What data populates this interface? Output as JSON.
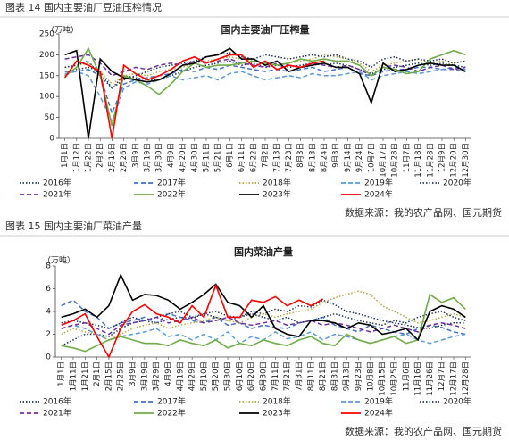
{
  "figures": [
    {
      "caption": "图表 14 国内主要油厂豆油压榨情况",
      "source": "数据来源：我的农产品网、国元期货"
    },
    {
      "caption": "图表 15 国内主要油厂菜油产量",
      "source": "数据来源：我的农产品网、国元期货"
    }
  ],
  "chart_data": [
    {
      "type": "line",
      "title": "国内主要油厂压榨量",
      "y_label": "（万吨）",
      "categories": [
        "1月1日",
        "1月12日",
        "1月22日",
        "2月2日",
        "2月16日",
        "2月26日",
        "3月9日",
        "3月19日",
        "3月30日",
        "4月9日",
        "4月20日",
        "4月30日",
        "5月11日",
        "5月21日",
        "6月1日",
        "6月11日",
        "6月22日",
        "7月2日",
        "7月13日",
        "7月23日",
        "8月3日",
        "8月13日",
        "8月24日",
        "9月3日",
        "9月14日",
        "9月24日",
        "10月7日",
        "10月17日",
        "10月28日",
        "11月7日",
        "11月18日",
        "11月28日",
        "12月9日",
        "12月20日",
        "12月30日"
      ],
      "ylim": [
        0,
        250
      ],
      "yticks": [
        0,
        50,
        100,
        150,
        200,
        250
      ],
      "grid": false,
      "series": [
        {
          "name": "2016年",
          "color": "#1f3864",
          "dash": "dotted",
          "values": [
            150,
            165,
            170,
            160,
            120,
            150,
            145,
            140,
            140,
            150,
            160,
            170,
            175,
            180,
            185,
            175,
            180,
            170,
            175,
            170,
            175,
            180,
            175,
            180,
            175,
            165,
            155,
            165,
            170,
            175,
            180,
            175,
            180,
            175,
            170
          ]
        },
        {
          "name": "2017年",
          "color": "#4472c4",
          "dash": "dashed",
          "values": [
            160,
            160,
            165,
            150,
            60,
            130,
            140,
            145,
            150,
            155,
            165,
            160,
            170,
            165,
            175,
            170,
            165,
            160,
            165,
            160,
            165,
            170,
            160,
            165,
            170,
            155,
            150,
            160,
            165,
            165,
            170,
            170,
            165,
            165,
            160
          ]
        },
        {
          "name": "2018年",
          "color": "#b5a642",
          "dash": "dotted",
          "values": [
            170,
            175,
            180,
            160,
            130,
            150,
            155,
            150,
            160,
            165,
            170,
            180,
            185,
            190,
            195,
            190,
            185,
            180,
            175,
            180,
            185,
            190,
            200,
            195,
            190,
            180,
            160,
            175,
            180,
            185,
            190,
            180,
            185,
            180,
            185
          ]
        },
        {
          "name": "2019年",
          "color": "#5b9bd5",
          "dash": "dashed",
          "values": [
            155,
            160,
            150,
            100,
            40,
            120,
            135,
            130,
            140,
            150,
            140,
            145,
            150,
            140,
            155,
            160,
            150,
            140,
            145,
            150,
            145,
            155,
            150,
            150,
            155,
            160,
            140,
            150,
            155,
            160,
            155,
            160,
            165,
            170,
            165
          ]
        },
        {
          "name": "2020年",
          "color": "#203864",
          "dash": "dotted",
          "values": [
            170,
            175,
            185,
            150,
            120,
            140,
            150,
            160,
            170,
            175,
            180,
            185,
            195,
            200,
            205,
            195,
            190,
            200,
            195,
            190,
            195,
            200,
            195,
            200,
            190,
            185,
            170,
            190,
            195,
            185,
            190,
            185,
            190,
            180,
            185
          ]
        },
        {
          "name": "2021年",
          "color": "#7030a0",
          "dash": "dashed",
          "values": [
            190,
            195,
            200,
            180,
            150,
            160,
            170,
            165,
            175,
            180,
            175,
            185,
            180,
            185,
            190,
            180,
            175,
            170,
            180,
            175,
            170,
            180,
            175,
            170,
            175,
            165,
            150,
            170,
            175,
            170,
            160,
            170,
            175,
            165,
            170
          ]
        },
        {
          "name": "2022年",
          "color": "#70ad47",
          "dash": "solid",
          "values": [
            150,
            170,
            215,
            150,
            30,
            150,
            140,
            125,
            105,
            130,
            160,
            180,
            170,
            175,
            175,
            180,
            185,
            180,
            175,
            180,
            190,
            185,
            190,
            185,
            185,
            175,
            150,
            170,
            165,
            155,
            160,
            190,
            200,
            210,
            200
          ]
        },
        {
          "name": "2023年",
          "color": "#000000",
          "dash": "solid",
          "values": [
            200,
            210,
            0,
            190,
            160,
            145,
            140,
            135,
            140,
            155,
            175,
            180,
            195,
            200,
            215,
            190,
            190,
            175,
            185,
            160,
            170,
            175,
            180,
            170,
            170,
            155,
            85,
            180,
            160,
            165,
            175,
            180,
            175,
            175,
            160
          ]
        },
        {
          "name": "2024年",
          "color": "#ff0000",
          "dash": "solid",
          "values": [
            145,
            185,
            175,
            160,
            0,
            175,
            155,
            140,
            150,
            165,
            185,
            195,
            180,
            190,
            200,
            200,
            170,
            185,
            165,
            175,
            170,
            180,
            185,
            null,
            null,
            null,
            null,
            null,
            null,
            null,
            null,
            null,
            null,
            null,
            null
          ]
        }
      ]
    },
    {
      "type": "line",
      "title": "国内菜油产量",
      "y_label": "（万吨）",
      "categories": [
        "1月1日",
        "1月11日",
        "1月21日",
        "2月1日",
        "2月15日",
        "2月25日",
        "3月9日",
        "3月19日",
        "3月29日",
        "4月9日",
        "4月19日",
        "4月29日",
        "5月10日",
        "5月20日",
        "5月30日",
        "6月10日",
        "6月20日",
        "6月30日",
        "7月11日",
        "7月21日",
        "7月31日",
        "8月11日",
        "8月21日",
        "8月31日",
        "9月13日",
        "9月23日",
        "10月8日",
        "10月15日",
        "10月25日",
        "11月6日",
        "11月16日",
        "11月26日",
        "12月7日",
        "12月17日",
        "12月28日"
      ],
      "ylim": [
        0,
        8
      ],
      "yticks": [
        0,
        2,
        4,
        6,
        8
      ],
      "grid": false,
      "series": [
        {
          "name": "2016年",
          "color": "#1f3864",
          "dash": "dotted",
          "values": [
            1,
            1.5,
            2,
            2,
            1.8,
            2.5,
            3,
            3.2,
            3,
            3.3,
            3.5,
            3.4,
            3.8,
            4,
            3.6,
            3.5,
            4,
            3.8,
            4.2,
            4,
            4.5,
            4.4,
            5,
            4.6,
            4,
            3.8,
            3.5,
            3.2,
            3,
            2.8,
            2.6,
            2.5,
            2.8,
            3,
            3
          ]
        },
        {
          "name": "2017年",
          "color": "#4472c4",
          "dash": "dashed",
          "values": [
            4.5,
            5,
            4,
            3.5,
            2.5,
            3,
            3.2,
            3.5,
            3,
            3.8,
            3.5,
            3.2,
            3,
            3.5,
            2.8,
            3,
            2.5,
            2.8,
            2.6,
            2.5,
            3,
            3.2,
            3.5,
            2.8,
            2.5,
            2.2,
            2.8,
            2.5,
            2.2,
            2,
            2.5,
            2.8,
            2.6,
            2.2,
            2
          ]
        },
        {
          "name": "2018年",
          "color": "#b5a642",
          "dash": "dotted",
          "values": [
            2,
            2.5,
            2.2,
            2,
            1.5,
            2,
            2.5,
            2.8,
            3,
            2.5,
            2.8,
            3,
            3.2,
            3.5,
            3.2,
            3,
            3.5,
            3.8,
            3.5,
            3.8,
            4,
            4.2,
            4.8,
            5.2,
            5.5,
            5.8,
            5.5,
            4.5,
            4,
            3.5,
            3,
            3.2,
            3.5,
            3.8,
            3.5
          ]
        },
        {
          "name": "2019年",
          "color": "#5b9bd5",
          "dash": "dashed",
          "values": [
            2.5,
            2.8,
            2.5,
            2,
            1.5,
            1.8,
            2,
            2.2,
            2.5,
            1.8,
            2,
            1.5,
            2,
            1.5,
            2.2,
            1.2,
            1.8,
            1.5,
            2.2,
            1.6,
            1.8,
            2.2,
            1.5,
            2,
            1.8,
            1.5,
            1.2,
            1.5,
            1.8,
            2,
            1.5,
            1.2,
            1.5,
            1.8,
            2
          ]
        },
        {
          "name": "2020年",
          "color": "#203864",
          "dash": "dotted",
          "values": [
            3,
            3.2,
            3,
            2.8,
            2.5,
            3,
            3.5,
            3.2,
            3.5,
            3.8,
            4,
            3.5,
            3.8,
            3.5,
            3.2,
            3.5,
            3.8,
            3.5,
            3.2,
            3.5,
            3,
            3.2,
            3.5,
            3.8,
            3.5,
            3.2,
            3,
            2.8,
            3.2,
            3,
            3.5,
            3.8,
            4,
            3.5,
            3.2
          ]
        },
        {
          "name": "2021年",
          "color": "#7030a0",
          "dash": "dashed",
          "values": [
            2.5,
            2.8,
            3,
            2.5,
            2,
            2.8,
            3,
            3.2,
            3.5,
            3,
            3.2,
            3.5,
            3,
            3.2,
            3.5,
            3,
            2.8,
            3,
            3.2,
            2.8,
            3,
            3.2,
            2.8,
            3,
            2.8,
            2.5,
            2.2,
            2.5,
            2.8,
            2.5,
            2.2,
            2.8,
            3,
            2.8,
            2.5
          ]
        },
        {
          "name": "2022年",
          "color": "#70ad47",
          "dash": "solid",
          "values": [
            1,
            0.8,
            0.5,
            1,
            1.5,
            1.8,
            1.5,
            1.2,
            1.2,
            1,
            1.5,
            1.2,
            1,
            1.5,
            0.8,
            1.2,
            1,
            1.5,
            1.2,
            1,
            1.5,
            1.8,
            1.2,
            1,
            2,
            1.5,
            1.2,
            1.5,
            1.8,
            1.2,
            1.5,
            5.5,
            4.8,
            5.2,
            4.2
          ]
        },
        {
          "name": "2023年",
          "color": "#000000",
          "dash": "solid",
          "values": [
            3.5,
            3.8,
            4.2,
            3.5,
            4.5,
            7.2,
            5,
            5.5,
            5.4,
            5,
            4.2,
            4.8,
            5.5,
            6.4,
            4.8,
            4.5,
            3.5,
            4.5,
            2.5,
            2,
            1.8,
            3.2,
            3.2,
            3,
            2.5,
            3,
            2.8,
            2,
            2.2,
            2.5,
            1.5,
            4,
            4.5,
            4.2,
            3.5
          ]
        },
        {
          "name": "2024年",
          "color": "#ff0000",
          "dash": "solid",
          "values": [
            2.8,
            3.2,
            3.8,
            1.8,
            0,
            2.5,
            4,
            4.6,
            3.8,
            3.5,
            3,
            4.5,
            3.5,
            6.3,
            3.5,
            3.5,
            5,
            4.8,
            5.3,
            4.5,
            5,
            4.5,
            5.1,
            null,
            null,
            null,
            null,
            null,
            null,
            null,
            null,
            null,
            null,
            null,
            null
          ]
        }
      ]
    }
  ]
}
